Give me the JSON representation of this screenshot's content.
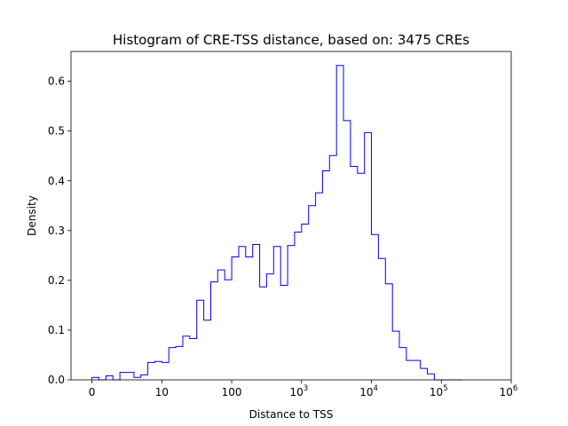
{
  "chart_data": {
    "type": "histogram",
    "title": "Histogram of CRE-TSS distance, based on: 3475 CREs",
    "xlabel": "Distance to TSS",
    "ylabel": "Density",
    "x_scale": "symlog",
    "xlim": [
      -0.3,
      6.0
    ],
    "ylim": [
      0,
      0.66
    ],
    "line_color": "#0000ff",
    "x_ticks": [
      {
        "value": 0,
        "base": "0",
        "exp": ""
      },
      {
        "value": 1,
        "base": "10",
        "exp": ""
      },
      {
        "value": 2,
        "base": "100",
        "exp": ""
      },
      {
        "value": 3,
        "base": "10",
        "exp": "3"
      },
      {
        "value": 4,
        "base": "10",
        "exp": "4"
      },
      {
        "value": 5,
        "base": "10",
        "exp": "5"
      },
      {
        "value": 6,
        "base": "10",
        "exp": "6"
      }
    ],
    "y_ticks": [
      "0.0",
      "0.1",
      "0.2",
      "0.3",
      "0.4",
      "0.5",
      "0.6"
    ],
    "bin_edges": [
      0.0,
      0.1,
      0.2,
      0.3,
      0.4,
      0.5,
      0.6,
      0.7,
      0.8,
      0.9,
      1.0,
      1.1,
      1.2,
      1.3,
      1.4,
      1.5,
      1.6,
      1.7,
      1.8,
      1.9,
      2.0,
      2.1,
      2.2,
      2.3,
      2.4,
      2.5,
      2.6,
      2.7,
      2.8,
      2.9,
      3.0,
      3.1,
      3.2,
      3.3,
      3.4,
      3.5,
      3.6,
      3.7,
      3.8,
      3.9,
      4.0,
      4.1,
      4.2,
      4.3,
      4.4,
      4.5,
      4.6,
      4.7,
      4.8,
      4.9,
      5.0,
      5.1,
      5.2,
      5.3
    ],
    "density": [
      0.005,
      0.0,
      0.008,
      0.0,
      0.015,
      0.015,
      0.005,
      0.01,
      0.035,
      0.037,
      0.035,
      0.065,
      0.067,
      0.088,
      0.083,
      0.16,
      0.12,
      0.197,
      0.221,
      0.201,
      0.247,
      0.268,
      0.247,
      0.272,
      0.187,
      0.213,
      0.268,
      0.19,
      0.27,
      0.297,
      0.313,
      0.35,
      0.376,
      0.42,
      0.451,
      0.632,
      0.521,
      0.429,
      0.415,
      0.497,
      0.292,
      0.244,
      0.193,
      0.098,
      0.065,
      0.039,
      0.039,
      0.023,
      0.012,
      0.0,
      0.0,
      0.0,
      0.0
    ]
  }
}
